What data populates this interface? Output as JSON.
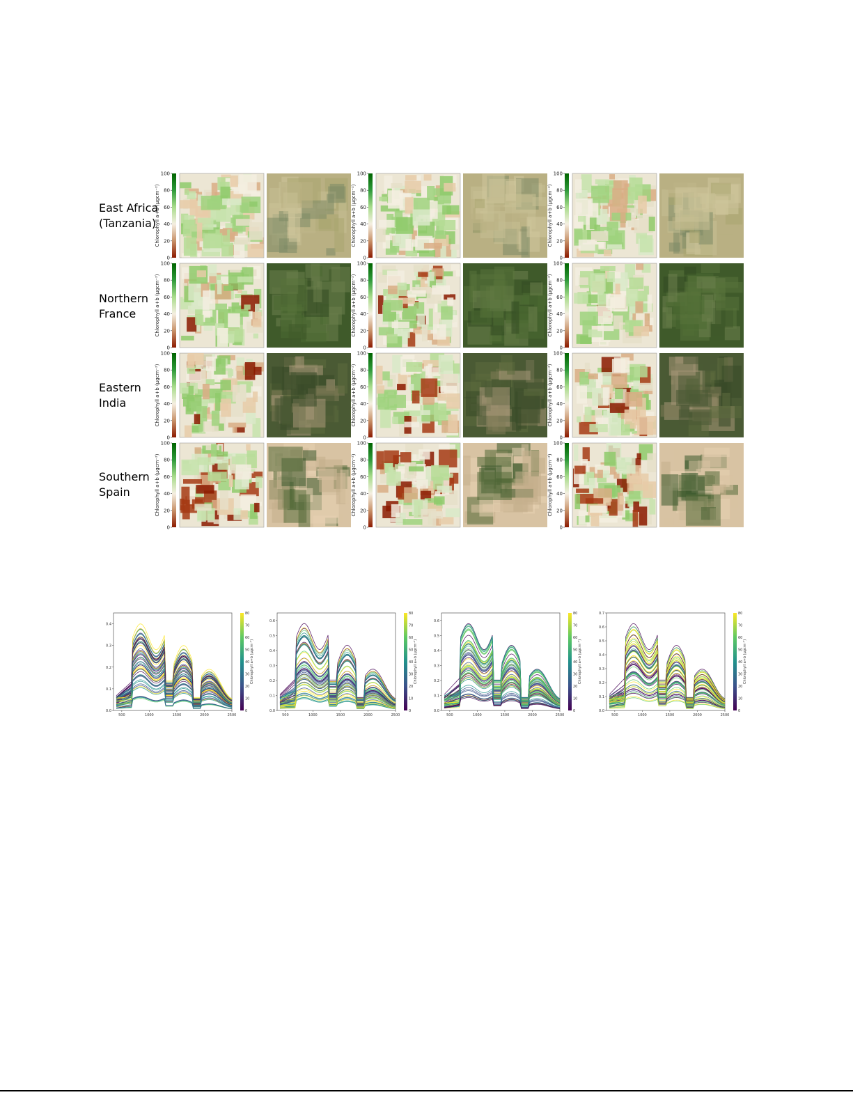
{
  "regions": [
    {
      "label": "East Africa\n(Tanzania)"
    },
    {
      "label": "Northern\nFrance"
    },
    {
      "label": "Eastern\nIndia"
    },
    {
      "label": "Southern\nSpain"
    }
  ],
  "map_colorbar": {
    "label": "Chlorophyll a+b (μgcm⁻²)",
    "ticks": [
      "0",
      "20",
      "40",
      "60",
      "80",
      "100"
    ],
    "colormap": [
      "#8b1a00",
      "#c8926a",
      "#f5efe1",
      "#a9dc8c",
      "#2e9a3a",
      "#006400"
    ]
  },
  "spectra_colorbar": {
    "label": "Chlorophyll a+b (μgcm⁻²)",
    "ticks": [
      "0",
      "10",
      "20",
      "30",
      "40",
      "50",
      "60",
      "70",
      "80"
    ],
    "colormap": [
      "#440154",
      "#3b528b",
      "#21918c",
      "#5ec962",
      "#fde725"
    ]
  },
  "chart_data": [
    {
      "type": "line",
      "xlabel": "",
      "ylabel": "",
      "x_ticks": [
        "500",
        "1000",
        "1500",
        "2000",
        "2500"
      ],
      "y_ticks": [
        "0.0",
        "0.1",
        "0.2",
        "0.3",
        "0.4"
      ],
      "xlim": [
        350,
        2500
      ],
      "ylim": [
        0.0,
        0.45
      ]
    },
    {
      "type": "line",
      "xlabel": "",
      "ylabel": "",
      "x_ticks": [
        "500",
        "1000",
        "1500",
        "2000",
        "2500"
      ],
      "y_ticks": [
        "0.0",
        "0.1",
        "0.2",
        "0.3",
        "0.4",
        "0.5",
        "0.6"
      ],
      "xlim": [
        350,
        2500
      ],
      "ylim": [
        0.0,
        0.65
      ]
    },
    {
      "type": "line",
      "xlabel": "",
      "ylabel": "",
      "x_ticks": [
        "500",
        "1000",
        "1500",
        "2000",
        "2500"
      ],
      "y_ticks": [
        "0.0",
        "0.1",
        "0.2",
        "0.3",
        "0.4",
        "0.5",
        "0.6"
      ],
      "xlim": [
        350,
        2500
      ],
      "ylim": [
        0.0,
        0.65
      ]
    },
    {
      "type": "line",
      "xlabel": "",
      "ylabel": "",
      "x_ticks": [
        "500",
        "1000",
        "1500",
        "2000",
        "2500"
      ],
      "y_ticks": [
        "0.0",
        "0.1",
        "0.2",
        "0.3",
        "0.4",
        "0.5",
        "0.6",
        "0.7"
      ],
      "xlim": [
        350,
        2500
      ],
      "ylim": [
        0.0,
        0.7
      ]
    }
  ]
}
